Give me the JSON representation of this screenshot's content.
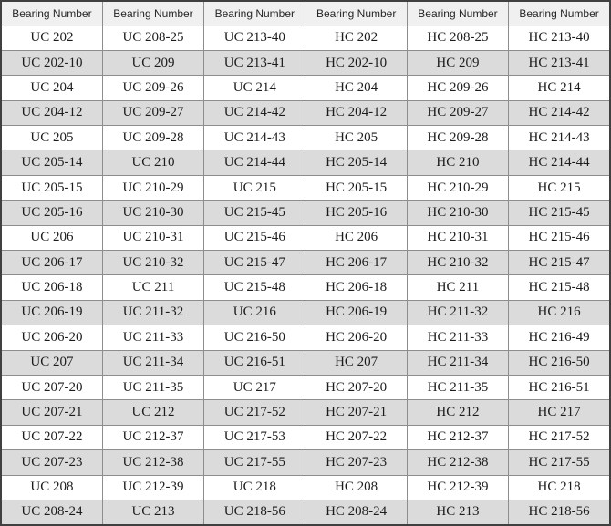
{
  "table": {
    "name": "bearing-number-table",
    "num_columns": 6,
    "num_data_rows": 20,
    "colors": {
      "header_bg": "#f0f0f0",
      "row_odd_bg": "#ffffff",
      "row_even_bg": "#dbdbdb",
      "border_inner": "#8d8d8d",
      "border_outer": "#404040",
      "header_text": "#262626",
      "cell_text": "#1c1c1c"
    },
    "columns": [
      {
        "header": "Bearing Number",
        "values": [
          "UC 202",
          "UC 202-10",
          "UC 204",
          "UC 204-12",
          "UC 205",
          "UC 205-14",
          "UC 205-15",
          "UC 205-16",
          "UC 206",
          "UC 206-17",
          "UC 206-18",
          "UC 206-19",
          "UC 206-20",
          "UC 207",
          "UC 207-20",
          "UC 207-21",
          "UC 207-22",
          "UC 207-23",
          "UC 208",
          "UC 208-24"
        ]
      },
      {
        "header": "Bearing Number",
        "values": [
          "UC 208-25",
          "UC 209",
          "UC 209-26",
          "UC 209-27",
          "UC 209-28",
          "UC 210",
          "UC 210-29",
          "UC 210-30",
          "UC 210-31",
          "UC 210-32",
          "UC 211",
          "UC 211-32",
          "UC 211-33",
          "UC 211-34",
          "UC 211-35",
          "UC 212",
          "UC 212-37",
          "UC 212-38",
          "UC 212-39",
          "UC 213"
        ]
      },
      {
        "header": "Bearing Number",
        "values": [
          "UC 213-40",
          "UC 213-41",
          "UC 214",
          "UC 214-42",
          "UC 214-43",
          "UC 214-44",
          "UC 215",
          "UC 215-45",
          "UC 215-46",
          "UC 215-47",
          "UC 215-48",
          "UC 216",
          "UC 216-50",
          "UC 216-51",
          "UC 217",
          "UC 217-52",
          "UC 217-53",
          "UC 217-55",
          "UC 218",
          "UC 218-56"
        ]
      },
      {
        "header": "Bearing Number",
        "values": [
          "HC 202",
          "HC 202-10",
          "HC 204",
          "HC 204-12",
          "HC 205",
          "HC 205-14",
          "HC 205-15",
          "HC 205-16",
          "HC 206",
          "HC 206-17",
          "HC 206-18",
          "HC 206-19",
          "HC 206-20",
          "HC 207",
          "HC 207-20",
          "HC 207-21",
          "HC 207-22",
          "HC 207-23",
          "HC 208",
          "HC 208-24"
        ]
      },
      {
        "header": "Bearing Number",
        "values": [
          "HC 208-25",
          "HC 209",
          "HC 209-26",
          "HC 209-27",
          "HC 209-28",
          "HC 210",
          "HC 210-29",
          "HC 210-30",
          "HC 210-31",
          "HC 210-32",
          "HC 211",
          "HC 211-32",
          "HC 211-33",
          "HC 211-34",
          "HC 211-35",
          "HC 212",
          "HC 212-37",
          "HC 212-38",
          "HC 212-39",
          "HC 213"
        ]
      },
      {
        "header": "Bearing Number",
        "values": [
          "HC 213-40",
          "HC 213-41",
          "HC 214",
          "HC 214-42",
          "HC 214-43",
          "HC 214-44",
          "HC 215",
          "HC 215-45",
          "HC 215-46",
          "HC 215-47",
          "HC 215-48",
          "HC 216",
          "HC 216-49",
          "HC 216-50",
          "HC 216-51",
          "HC 217",
          "HC 217-52",
          "HC 217-55",
          "HC 218",
          "HC 218-56"
        ]
      }
    ]
  }
}
